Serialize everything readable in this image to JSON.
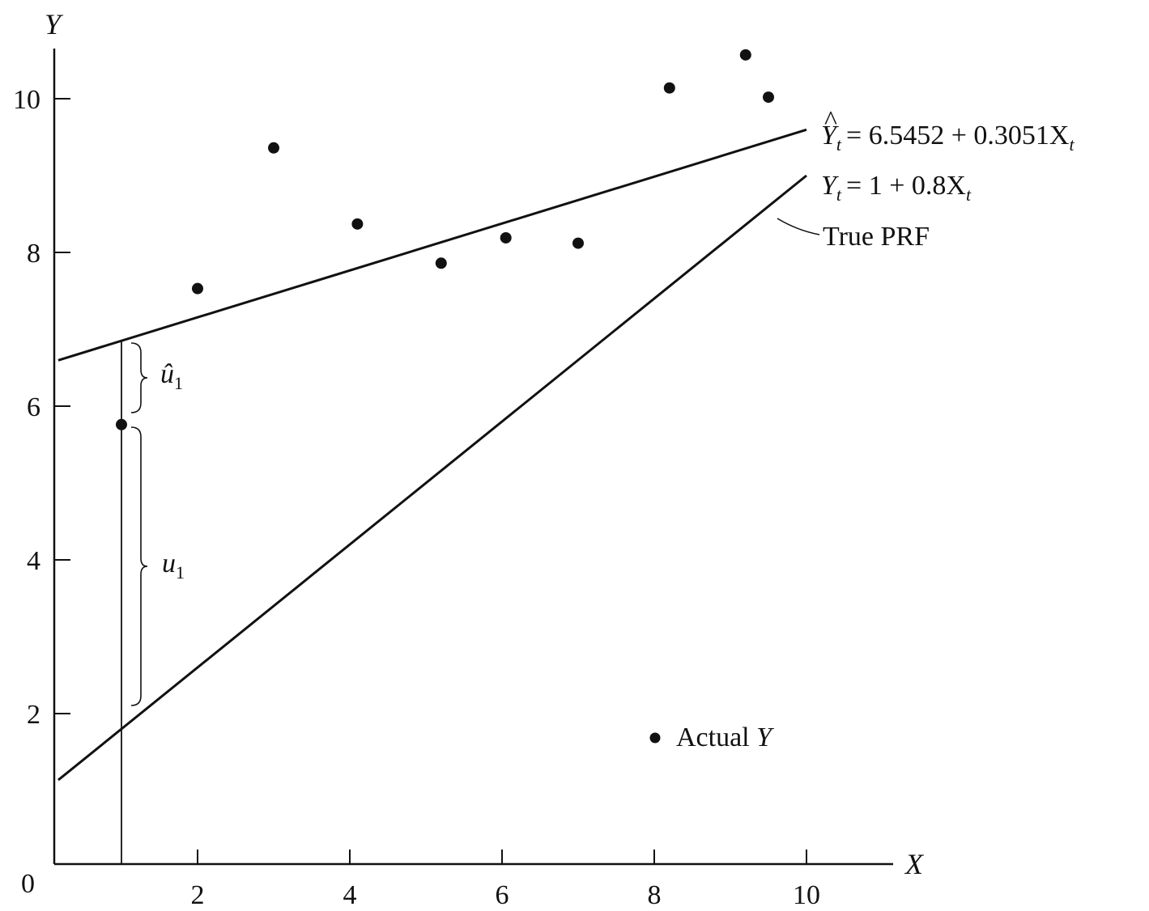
{
  "chart_data": {
    "type": "scatter",
    "xlabel": "X",
    "ylabel": "Y",
    "origin_label": "0",
    "xlim": [
      0,
      11
    ],
    "ylim": [
      0,
      10.7
    ],
    "x_ticks": [
      2,
      4,
      6,
      8,
      10
    ],
    "y_ticks": [
      2,
      4,
      6,
      8,
      10
    ],
    "grid": false,
    "series": [
      {
        "name": "Actual Y",
        "type": "scatter",
        "points": [
          {
            "x": 1.0,
            "y": 5.76
          },
          {
            "x": 2.0,
            "y": 7.53
          },
          {
            "x": 3.0,
            "y": 9.36
          },
          {
            "x": 4.1,
            "y": 8.37
          },
          {
            "x": 5.2,
            "y": 7.86
          },
          {
            "x": 6.05,
            "y": 8.19
          },
          {
            "x": 7.0,
            "y": 8.12
          },
          {
            "x": 8.2,
            "y": 10.14
          },
          {
            "x": 9.2,
            "y": 10.57
          },
          {
            "x": 9.5,
            "y": 10.02
          }
        ]
      },
      {
        "type": "line",
        "equation": "Ŷt = 6.5452 + 0.3051Xt",
        "intercept": 6.5452,
        "slope": 0.3051,
        "x_range": [
          0,
          10
        ]
      },
      {
        "type": "line",
        "equation": "Yt = 1 + 0.8Xt",
        "intercept": 1,
        "slope": 0.8,
        "x_range": [
          0,
          10
        ]
      }
    ],
    "legend": {
      "marker_label": "Actual",
      "marker_label_var": "Y",
      "placement": "bottom-right"
    },
    "annotations": {
      "fitted_eq": {
        "lhs": "Y",
        "hat": "^",
        "sub": "t",
        "rhs": "= 6.5452 + 0.3051X",
        "rhs_sub": "t"
      },
      "true_eq": {
        "lhs": "Y",
        "sub": "t",
        "rhs": "= 1 + 0.8X",
        "rhs_sub": "t"
      },
      "true_prf": "True PRF",
      "residual_hat": {
        "sym": "û",
        "sub": "1"
      },
      "error": {
        "sym": "u",
        "sub": "1"
      },
      "residual_x": 1.0
    }
  }
}
